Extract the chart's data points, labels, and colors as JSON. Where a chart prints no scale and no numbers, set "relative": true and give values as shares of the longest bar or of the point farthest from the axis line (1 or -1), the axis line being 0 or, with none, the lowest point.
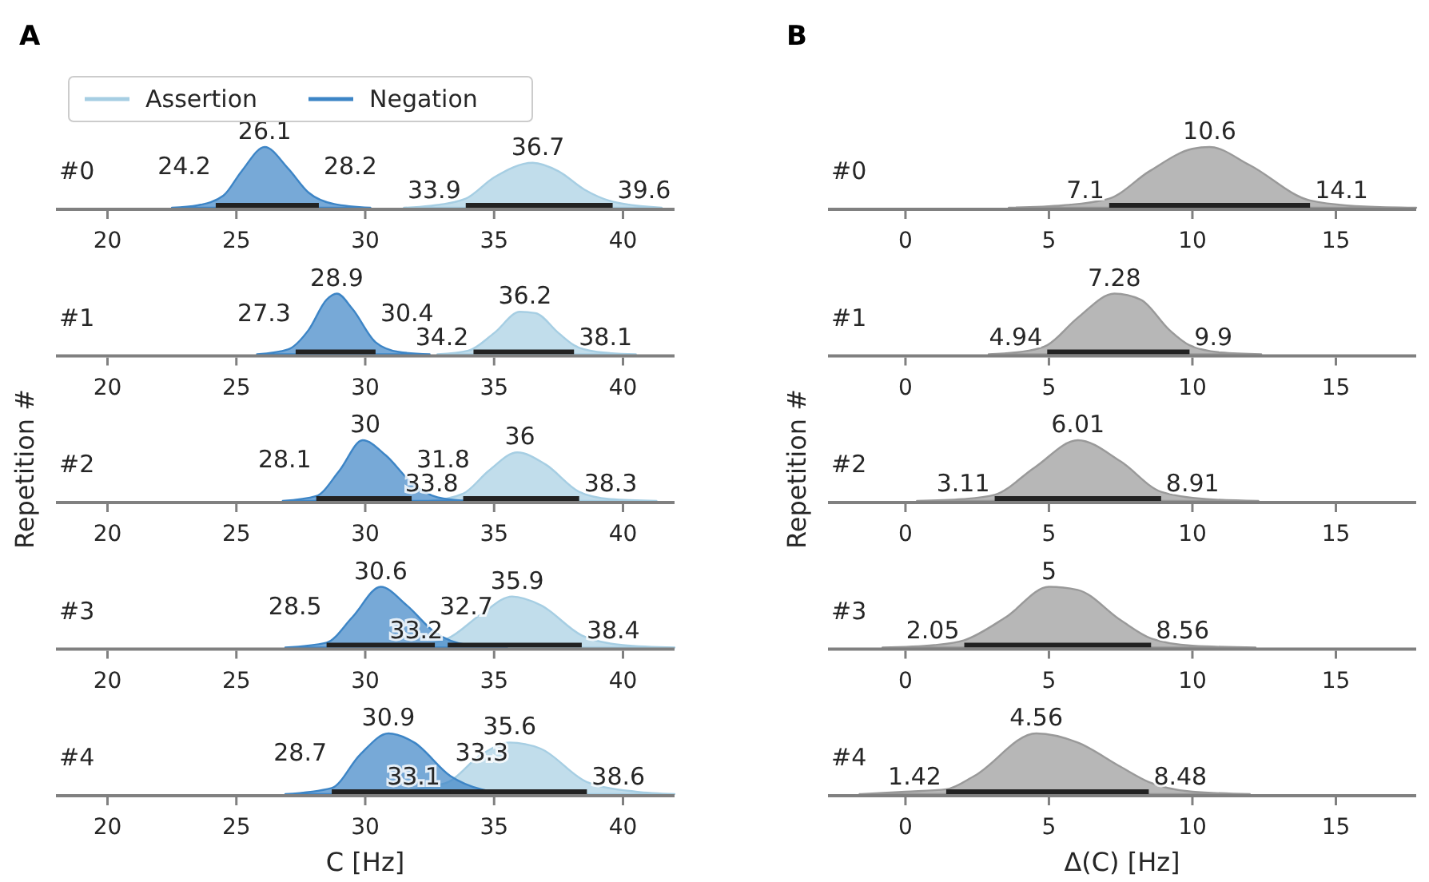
{
  "chart_data": [
    {
      "type": "area",
      "title": "A",
      "subtitle": "#0",
      "relative": true,
      "xlim": [
        18,
        42
      ],
      "xticks": [
        20,
        25,
        30,
        35,
        40
      ],
      "legend": "top left",
      "series": [
        {
          "name": "Assertion",
          "color": "#a6cee3",
          "x": [
            31.5,
            32.5,
            33.9,
            35,
            36.5,
            37.5,
            38.5,
            39.6,
            41.5
          ],
          "values": [
            0,
            0.03,
            0.15,
            0.5,
            0.74,
            0.6,
            0.3,
            0.1,
            0
          ]
        },
        {
          "name": "Negation",
          "color": "#3d85c6",
          "x": [
            22.5,
            23.5,
            24.5,
            25.2,
            26.1,
            27,
            27.8,
            28.8,
            30.2
          ],
          "values": [
            0,
            0.04,
            0.2,
            0.6,
            1,
            0.65,
            0.25,
            0.06,
            0
          ]
        },
        {
          "type": "line",
          "color": "#222222",
          "x": [
            33.9,
            39.6
          ],
          "values": [
            0,
            0
          ]
        },
        {
          "type": "line",
          "color": "#222222",
          "x": [
            24.2,
            28.2
          ],
          "values": [
            0,
            0
          ]
        }
      ],
      "annotations": [
        {
          "text": "36.7",
          "x": 36.7,
          "y": 0.74
        },
        {
          "text": "33.9",
          "x": 33.9,
          "y": 0
        },
        {
          "text": "39.6",
          "x": 39.6,
          "y": 0
        },
        {
          "text": "26.1",
          "x": 26.1,
          "y": 1
        },
        {
          "text": "24.2",
          "x": 24.2,
          "y": 0
        },
        {
          "text": "28.2",
          "x": 28.2,
          "y": 0
        }
      ]
    },
    {
      "type": "area",
      "subtitle": "#1",
      "relative": true,
      "xlim": [
        18,
        42
      ],
      "xticks": [
        20,
        25,
        30,
        35,
        40
      ],
      "series": [
        {
          "color": "#a6cee3",
          "x": [
            32.8,
            34,
            35,
            36,
            36.6,
            37.5,
            38.1,
            39,
            40.5
          ],
          "values": [
            0,
            0.06,
            0.35,
            0.7,
            0.68,
            0.35,
            0.15,
            0.04,
            0
          ]
        },
        {
          "color": "#3d85c6",
          "x": [
            25.8,
            27,
            27.8,
            28.5,
            28.9,
            29.5,
            30.4,
            31.3,
            32.5
          ],
          "values": [
            0,
            0.08,
            0.4,
            0.9,
            1,
            0.75,
            0.2,
            0.04,
            0
          ]
        },
        {
          "type": "line",
          "color": "#222222",
          "x": [
            34.2,
            38.1
          ],
          "values": [
            0,
            0
          ]
        },
        {
          "type": "line",
          "color": "#222222",
          "x": [
            27.3,
            30.4
          ],
          "values": [
            0,
            0
          ]
        }
      ],
      "annotations": [
        {
          "text": "36.2",
          "x": 36.2,
          "y": 0.7
        },
        {
          "text": "34.2",
          "x": 34.2,
          "y": 0
        },
        {
          "text": "38.1",
          "x": 38.1,
          "y": 0
        },
        {
          "text": "28.9",
          "x": 28.9,
          "y": 1
        },
        {
          "text": "27.3",
          "x": 27.3,
          "y": 0
        },
        {
          "text": "30.4",
          "x": 30.4,
          "y": 0
        }
      ]
    },
    {
      "type": "area",
      "subtitle": "#2",
      "ylabel": "Repetition #",
      "relative": true,
      "xlim": [
        18,
        42
      ],
      "xticks": [
        20,
        25,
        30,
        35,
        40
      ],
      "series": [
        {
          "color": "#a6cee3",
          "x": [
            32.5,
            33.8,
            34.8,
            35.9,
            37,
            38.3,
            39.5,
            41.3
          ],
          "values": [
            0,
            0.12,
            0.5,
            0.8,
            0.6,
            0.15,
            0.03,
            0
          ]
        },
        {
          "color": "#3d85c6",
          "x": [
            26.8,
            28.1,
            29,
            29.9,
            30.8,
            31.8,
            32.8,
            34
          ],
          "values": [
            0,
            0.08,
            0.5,
            1,
            0.75,
            0.3,
            0.06,
            0
          ]
        },
        {
          "type": "line",
          "color": "#222222",
          "x": [
            33.8,
            38.3
          ],
          "values": [
            0,
            0
          ]
        },
        {
          "type": "line",
          "color": "#222222",
          "x": [
            28.1,
            31.8
          ],
          "values": [
            0,
            0
          ]
        }
      ],
      "annotations": [
        {
          "text": "36",
          "x": 36,
          "y": 0.8
        },
        {
          "text": "33.8",
          "x": 33.8,
          "y": 0
        },
        {
          "text": "38.3",
          "x": 38.3,
          "y": 0
        },
        {
          "text": "30",
          "x": 30,
          "y": 1
        },
        {
          "text": "28.1",
          "x": 28.1,
          "y": 0
        },
        {
          "text": "31.8",
          "x": 31.8,
          "y": 0
        }
      ]
    },
    {
      "type": "area",
      "subtitle": "#3",
      "relative": true,
      "xlim": [
        18,
        42
      ],
      "xticks": [
        20,
        25,
        30,
        35,
        40
      ],
      "series": [
        {
          "color": "#a6cee3",
          "x": [
            31.5,
            33.2,
            34.5,
            35.7,
            36.8,
            38.4,
            40,
            42
          ],
          "values": [
            0,
            0.15,
            0.55,
            0.84,
            0.7,
            0.2,
            0.04,
            0
          ]
        },
        {
          "color": "#3d85c6",
          "x": [
            26.9,
            28.5,
            29.5,
            30.6,
            31.6,
            32.7,
            34,
            35.5
          ],
          "values": [
            0,
            0.08,
            0.5,
            1,
            0.7,
            0.25,
            0.04,
            0
          ]
        },
        {
          "type": "line",
          "color": "#222222",
          "x": [
            33.2,
            38.4
          ],
          "values": [
            0,
            0
          ]
        },
        {
          "type": "line",
          "color": "#222222",
          "x": [
            28.5,
            32.7
          ],
          "values": [
            0,
            0
          ]
        }
      ],
      "annotations": [
        {
          "text": "35.9",
          "x": 35.9,
          "y": 0.84
        },
        {
          "text": "33.2",
          "x": 33.2,
          "y": 0
        },
        {
          "text": "38.4",
          "x": 38.4,
          "y": 0
        },
        {
          "text": "30.6",
          "x": 30.6,
          "y": 1
        },
        {
          "text": "28.5",
          "x": 28.5,
          "y": 0
        },
        {
          "text": "32.7",
          "x": 32.7,
          "y": 0
        }
      ]
    },
    {
      "type": "area",
      "subtitle": "#4",
      "xlabel": "C [Hz]",
      "relative": true,
      "xlim": [
        18,
        42
      ],
      "xticks": [
        20,
        25,
        30,
        35,
        40
      ],
      "series": [
        {
          "color": "#a6cee3",
          "x": [
            30,
            33.1,
            34.5,
            35.6,
            36.8,
            38.6,
            40.5,
            42
          ],
          "values": [
            0,
            0.18,
            0.65,
            0.85,
            0.75,
            0.2,
            0.04,
            0
          ]
        },
        {
          "color": "#3d85c6",
          "x": [
            26.9,
            28.7,
            29.8,
            30.9,
            31.9,
            33.3,
            34.5,
            36
          ],
          "values": [
            0,
            0.1,
            0.65,
            1,
            0.85,
            0.3,
            0.08,
            0
          ]
        },
        {
          "type": "line",
          "color": "#222222",
          "x": [
            33.1,
            38.6
          ],
          "values": [
            0,
            0
          ]
        },
        {
          "type": "line",
          "color": "#222222",
          "x": [
            28.7,
            33.3
          ],
          "values": [
            0,
            0
          ]
        }
      ],
      "annotations": [
        {
          "text": "35.6",
          "x": 35.6,
          "y": 0.85
        },
        {
          "text": "33.1",
          "x": 33.1,
          "y": 0
        },
        {
          "text": "38.6",
          "x": 38.6,
          "y": 0
        },
        {
          "text": "30.9",
          "x": 30.9,
          "y": 1
        },
        {
          "text": "28.7",
          "x": 28.7,
          "y": 0
        },
        {
          "text": "33.3",
          "x": 33.3,
          "y": 0
        }
      ]
    },
    {
      "type": "area",
      "title": "B",
      "subtitle": "#0",
      "relative": true,
      "xlim": [
        -2.7,
        17.8
      ],
      "xticks": [
        0,
        5,
        10,
        15
      ],
      "series": [
        {
          "color": "#999999",
          "x": [
            3.6,
            5.5,
            7.1,
            8.5,
            10,
            10.6,
            12,
            14.1,
            16,
            17.8
          ],
          "values": [
            0,
            0.04,
            0.15,
            0.6,
            0.97,
            1,
            0.7,
            0.12,
            0.02,
            0
          ]
        },
        {
          "type": "line",
          "color": "#222222",
          "x": [
            7.1,
            14.1
          ],
          "values": [
            0,
            0
          ]
        }
      ],
      "annotations": [
        {
          "text": "10.6",
          "x": 10.6,
          "y": 1
        },
        {
          "text": "7.1",
          "x": 7.1,
          "y": 0
        },
        {
          "text": "14.1",
          "x": 14.1,
          "y": 0
        }
      ]
    },
    {
      "type": "area",
      "subtitle": "#1",
      "relative": true,
      "xlim": [
        -2.7,
        17.8
      ],
      "xticks": [
        0,
        5,
        10,
        15
      ],
      "series": [
        {
          "color": "#999999",
          "x": [
            2.9,
            4.3,
            4.94,
            6,
            7.28,
            8.2,
            9.2,
            9.9,
            11,
            12.4
          ],
          "values": [
            0,
            0.06,
            0.15,
            0.6,
            1,
            0.9,
            0.4,
            0.15,
            0.03,
            0
          ]
        },
        {
          "type": "line",
          "color": "#222222",
          "x": [
            4.94,
            9.9
          ],
          "values": [
            0,
            0
          ]
        }
      ],
      "annotations": [
        {
          "text": "7.28",
          "x": 7.28,
          "y": 1
        },
        {
          "text": "4.94",
          "x": 4.94,
          "y": 0
        },
        {
          "text": "9.9",
          "x": 9.9,
          "y": 0
        }
      ]
    },
    {
      "type": "area",
      "subtitle": "#2",
      "ylabel": "Repetition #",
      "relative": true,
      "xlim": [
        -2.7,
        17.8
      ],
      "xticks": [
        0,
        5,
        10,
        15
      ],
      "series": [
        {
          "color": "#999999",
          "x": [
            0.4,
            2,
            3.11,
            4.5,
            6.01,
            7.5,
            8.91,
            10.5,
            12.3
          ],
          "values": [
            0,
            0.03,
            0.1,
            0.55,
            1,
            0.65,
            0.15,
            0.03,
            0
          ]
        },
        {
          "type": "line",
          "color": "#222222",
          "x": [
            3.11,
            8.91
          ],
          "values": [
            0,
            0
          ]
        }
      ],
      "annotations": [
        {
          "text": "6.01",
          "x": 6.01,
          "y": 1
        },
        {
          "text": "3.11",
          "x": 3.11,
          "y": 0
        },
        {
          "text": "8.91",
          "x": 8.91,
          "y": 0
        }
      ]
    },
    {
      "type": "area",
      "subtitle": "#3",
      "relative": true,
      "xlim": [
        -2.7,
        17.8
      ],
      "xticks": [
        0,
        5,
        10,
        15
      ],
      "series": [
        {
          "color": "#999999",
          "x": [
            -0.8,
            1,
            2.05,
            3.5,
            5,
            6,
            7.5,
            8.56,
            10,
            12.2
          ],
          "values": [
            0,
            0.04,
            0.12,
            0.5,
            1,
            0.95,
            0.45,
            0.15,
            0.03,
            0
          ]
        },
        {
          "type": "line",
          "color": "#222222",
          "x": [
            2.05,
            8.56
          ],
          "values": [
            0,
            0
          ]
        }
      ],
      "annotations": [
        {
          "text": "5",
          "x": 5,
          "y": 1
        },
        {
          "text": "2.05",
          "x": 2.05,
          "y": 0
        },
        {
          "text": "8.56",
          "x": 8.56,
          "y": 0
        }
      ]
    },
    {
      "type": "area",
      "subtitle": "#4",
      "xlabel": "Δ(C) [Hz]",
      "relative": true,
      "xlim": [
        -2.7,
        17.8
      ],
      "xticks": [
        0,
        5,
        10,
        15
      ],
      "series": [
        {
          "color": "#999999",
          "x": [
            -1.6,
            0,
            1.42,
            2.4,
            4.56,
            6,
            7.5,
            8.48,
            10,
            12
          ],
          "values": [
            0,
            0.04,
            0.08,
            0.3,
            1,
            0.85,
            0.45,
            0.2,
            0.04,
            0
          ]
        },
        {
          "type": "line",
          "color": "#222222",
          "x": [
            1.42,
            8.48
          ],
          "values": [
            0,
            0
          ]
        }
      ],
      "annotations": [
        {
          "text": "4.56",
          "x": 4.56,
          "y": 1
        },
        {
          "text": "1.42",
          "x": 1.42,
          "y": 0
        },
        {
          "text": "8.48",
          "x": 8.48,
          "y": 0
        }
      ]
    }
  ]
}
